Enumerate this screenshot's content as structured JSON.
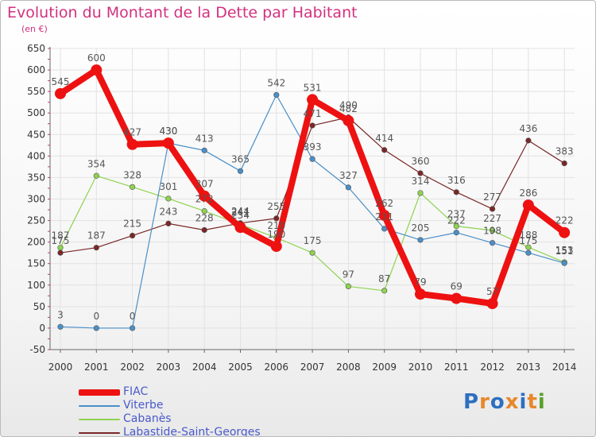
{
  "title": "Evolution du Montant de la Dette par Habitant",
  "subtitle": "(en €)",
  "logo": {
    "text": "Proxiti",
    "letter_colors": [
      "#2e6fbf",
      "#e8872a",
      "#2e6fbf",
      "#e8872a",
      "#2e6fbf",
      "#e8872a",
      "#5aa02c"
    ]
  },
  "chart_data": {
    "type": "line",
    "title": "Evolution du Montant de la Dette par Habitant",
    "ylabel": "(en €)",
    "ylim": [
      -50,
      650
    ],
    "yticks": [
      -50,
      0,
      50,
      100,
      150,
      200,
      250,
      300,
      350,
      400,
      450,
      500,
      550,
      600,
      650
    ],
    "x": [
      "2000",
      "2001",
      "2002",
      "2003",
      "2004",
      "2005",
      "2006",
      "2007",
      "2008",
      "2009",
      "2010",
      "2011",
      "2012",
      "2013",
      "2014"
    ],
    "grid": true,
    "legend": "bottom-left",
    "series": [
      {
        "name": "FIAC",
        "color": "#ee1111",
        "values": [
          545,
          600,
          427,
          430,
          307,
          234,
          190,
          531,
          482,
          262,
          79,
          69,
          57,
          286,
          222
        ]
      },
      {
        "name": "Viterbe",
        "color": "#4a8fc8",
        "values": [
          3,
          0,
          0,
          430,
          413,
          365,
          542,
          393,
          327,
          231,
          205,
          222,
          198,
          175,
          151
        ]
      },
      {
        "name": "Cabanès",
        "color": "#8ed34f",
        "values": [
          187,
          354,
          328,
          301,
          272,
          241,
          210,
          175,
          97,
          87,
          314,
          237,
          227,
          188,
          153
        ]
      },
      {
        "name": "Labastide-Saint-Georges",
        "color": "#7a2727",
        "values": [
          175,
          187,
          215,
          243,
          228,
          244,
          255,
          471,
          490,
          414,
          360,
          316,
          277,
          436,
          383
        ]
      }
    ]
  }
}
